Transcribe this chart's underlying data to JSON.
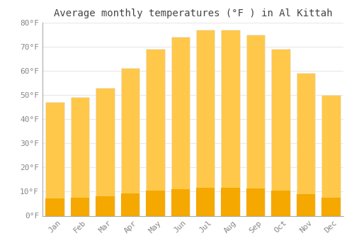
{
  "title": "Average monthly temperatures (°F ) in Al Kittah",
  "months": [
    "Jan",
    "Feb",
    "Mar",
    "Apr",
    "May",
    "Jun",
    "Jul",
    "Aug",
    "Sep",
    "Oct",
    "Nov",
    "Dec"
  ],
  "values": [
    47,
    49,
    53,
    61,
    69,
    74,
    77,
    77,
    75,
    69,
    59,
    50
  ],
  "bar_color_top": "#FFC84A",
  "bar_color_bottom": "#F5A800",
  "bar_edge_color": "#E8E8E8",
  "ylim": [
    0,
    80
  ],
  "yticks": [
    0,
    10,
    20,
    30,
    40,
    50,
    60,
    70,
    80
  ],
  "ytick_labels": [
    "0°F",
    "10°F",
    "20°F",
    "30°F",
    "40°F",
    "50°F",
    "60°F",
    "70°F",
    "80°F"
  ],
  "background_color": "#ffffff",
  "grid_color": "#e8e8e8",
  "title_fontsize": 10,
  "tick_fontsize": 8,
  "tick_color": "#888888",
  "bar_width": 0.75,
  "spine_color": "#aaaaaa"
}
